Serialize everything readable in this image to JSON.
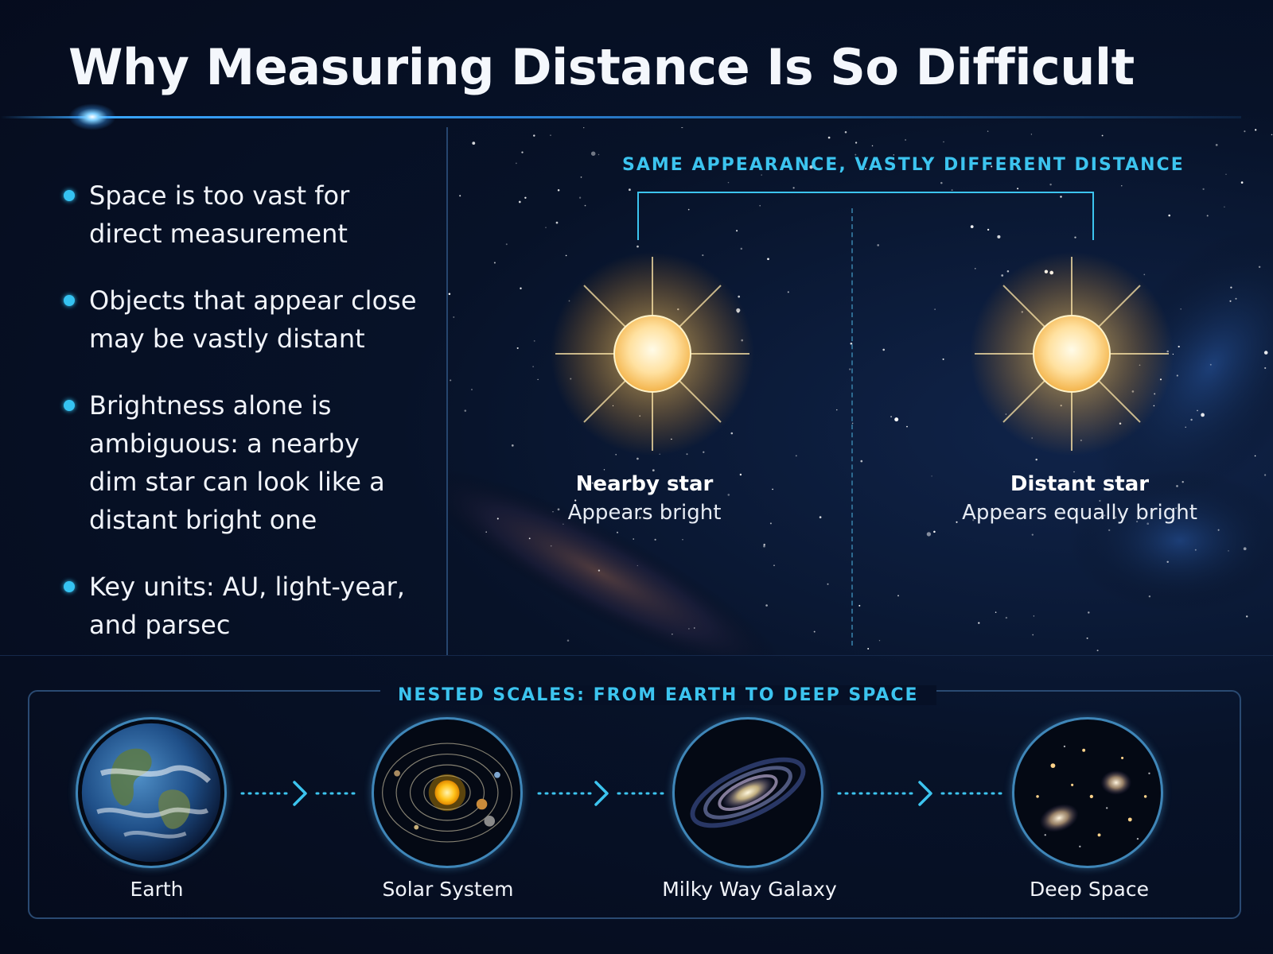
{
  "title": "Why Measuring Distance Is So Difficult",
  "bullets": [
    {
      "lines": [
        "Space is too vast for",
        "direct measurement"
      ]
    },
    {
      "lines": [
        "Objects that appear close",
        "may be vastly distant"
      ]
    },
    {
      "lines": [
        "Brightness alone is",
        "ambiguous: a nearby",
        "dim star can look like a",
        "distant bright one"
      ]
    },
    {
      "lines": [
        "Key units: AU, light-year,",
        "and parsec"
      ]
    }
  ],
  "comparison": {
    "title": "SAME APPEARANCE, VASTLY DIFFERENT DISTANCE",
    "nearby": {
      "name": "Nearby star",
      "desc": "Appears bright"
    },
    "distant": {
      "name": "Distant star",
      "desc": "Appears equally bright"
    }
  },
  "scales": {
    "title": "NESTED SCALES: FROM EARTH TO DEEP SPACE",
    "items": [
      {
        "label": "Earth",
        "icon": "earth-icon"
      },
      {
        "label": "Solar System",
        "icon": "solar-system-icon"
      },
      {
        "label": "Milky Way Galaxy",
        "icon": "galaxy-icon"
      },
      {
        "label": "Deep Space",
        "icon": "deep-space-icon"
      }
    ]
  },
  "colors": {
    "accent": "#3cc4ef",
    "background": "#071228",
    "star": "#ffd98a"
  }
}
